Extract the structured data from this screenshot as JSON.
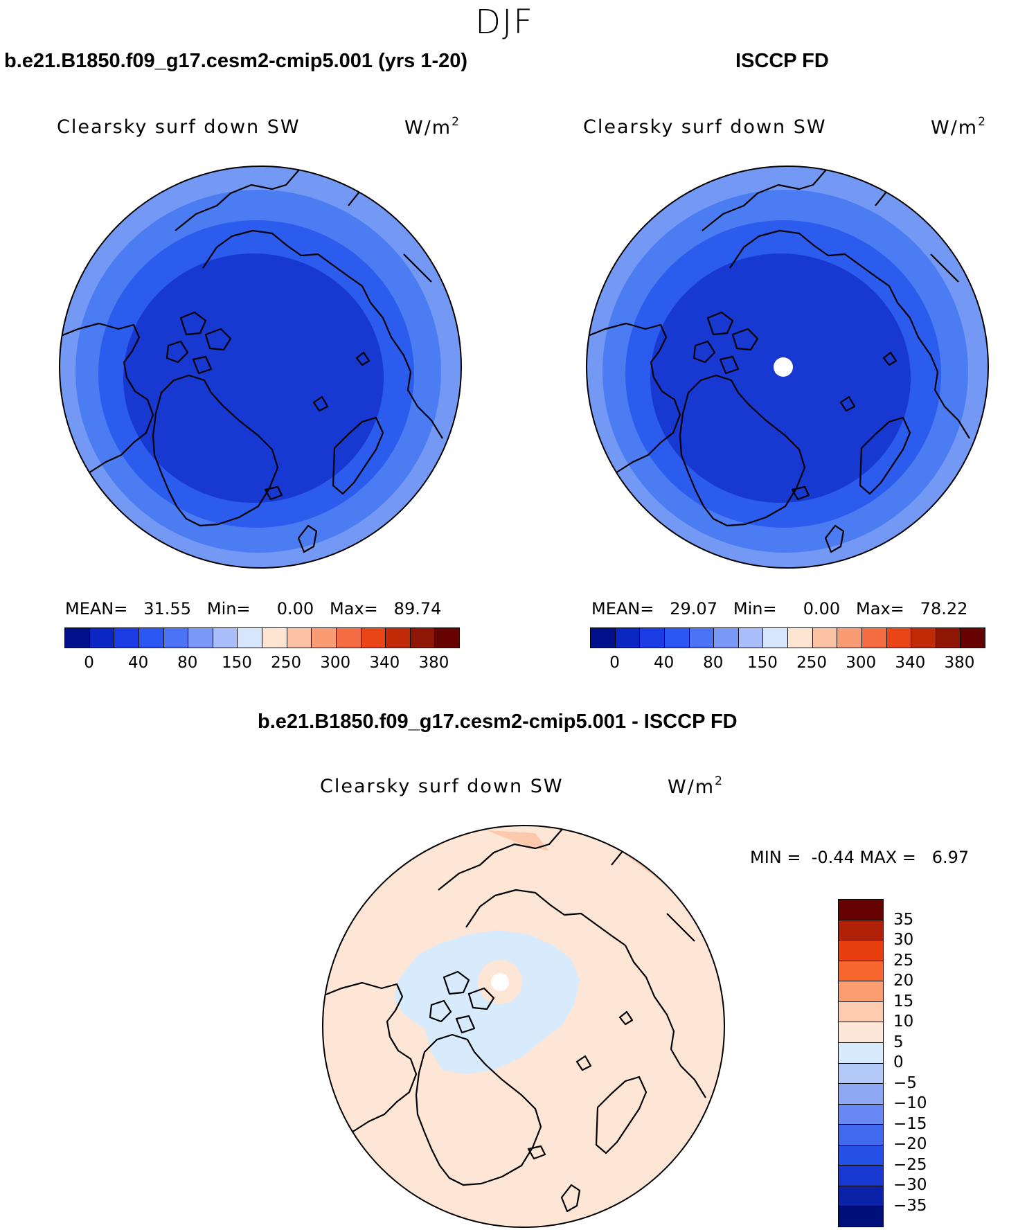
{
  "season": "DJF",
  "colors": {
    "ring_outer": "#7499f4",
    "ring2": "#4b7cf2",
    "ring3": "#2b5ced",
    "ring_inner": "#1838d2",
    "diff_background": "#fde6d6",
    "diff_negative": "#d7ebfd",
    "diff_positive_patch": "#fcc9ad",
    "coast": "#000000"
  },
  "panels": [
    {
      "case_title": "b.e21.B1850.f09_g17.cesm2-cmip5.001 (yrs 1-20)",
      "variable": "Clearsky surf down SW",
      "units_base": "W/m",
      "units_exp": "2",
      "mean_label": "MEAN=",
      "mean": "31.55",
      "min_label": "Min=",
      "min": "0.00",
      "max_label": "Max=",
      "max": "89.74",
      "missing_pole": false
    },
    {
      "case_title": "ISCCP FD",
      "variable": "Clearsky surf down SW",
      "units_base": "W/m",
      "units_exp": "2",
      "mean_label": "MEAN=",
      "mean": "29.07",
      "min_label": "Min=",
      "min": "0.00",
      "max_label": "Max=",
      "max": "78.22",
      "missing_pole": true
    }
  ],
  "diff_panel": {
    "case_title": "b.e21.B1850.f09_g17.cesm2-cmip5.001 - ISCCP FD",
    "variable": "Clearsky surf down SW",
    "units_base": "W/m",
    "units_exp": "2",
    "min_label": "MIN =",
    "min": "-0.44",
    "max_label": "MAX =",
    "max": "6.97"
  },
  "colorbar_abs": {
    "colors": [
      "#000f8a",
      "#0a27c4",
      "#1c3de6",
      "#2b58f2",
      "#4a74f5",
      "#7a99f7",
      "#a8bdf9",
      "#d6e6fb",
      "#fde5d2",
      "#fbc3a3",
      "#f99c73",
      "#f56e43",
      "#e94517",
      "#c02a07",
      "#8f1505",
      "#650303"
    ],
    "tick_labels": [
      "0",
      "40",
      "80",
      "150",
      "250",
      "300",
      "340",
      "380"
    ]
  },
  "colorbar_diff": {
    "colors": [
      "#650303",
      "#b02006",
      "#e73e10",
      "#f8672e",
      "#fa9d6f",
      "#fccbb0",
      "#fde7d8",
      "#d7ebfd",
      "#b3c9f8",
      "#8ea8f4",
      "#6889f1",
      "#4169ee",
      "#2550e7",
      "#1838d2",
      "#0a22a8",
      "#000f7a"
    ],
    "tick_labels": [
      "35",
      "30",
      "25",
      "20",
      "15",
      "10",
      "5",
      "0",
      "−5",
      "−10",
      "−15",
      "−20",
      "−25",
      "−30",
      "−35"
    ]
  },
  "chart_data": [
    {
      "type": "heatmap",
      "title": "b.e21.B1850.f09_g17.cesm2-cmip5.001 (yrs 1-20)",
      "subtitle": "Clearsky surf down SW",
      "units": "W/m2",
      "projection": "north polar stereographic",
      "stats": {
        "mean": 31.55,
        "min": 0.0,
        "max": 89.74
      },
      "contour_levels": [
        0,
        20,
        40,
        60,
        80,
        100,
        150,
        200,
        250,
        275,
        300,
        320,
        340,
        360,
        380
      ],
      "rings_center_to_edge": [
        20,
        40,
        60,
        80
      ]
    },
    {
      "type": "heatmap",
      "title": "ISCCP FD",
      "subtitle": "Clearsky surf down SW",
      "units": "W/m2",
      "projection": "north polar stereographic",
      "stats": {
        "mean": 29.07,
        "min": 0.0,
        "max": 78.22
      },
      "contour_levels": [
        0,
        20,
        40,
        60,
        80,
        100,
        150,
        200,
        250,
        275,
        300,
        320,
        340,
        360,
        380
      ],
      "rings_center_to_edge": [
        20,
        40,
        60,
        80
      ]
    },
    {
      "type": "heatmap",
      "title": "b.e21.B1850.f09_g17.cesm2-cmip5.001 - ISCCP FD",
      "subtitle": "Clearsky surf down SW",
      "units": "W/m2",
      "projection": "north polar stereographic",
      "stats": {
        "min": -0.44,
        "max": 6.97
      },
      "contour_levels": [
        -35,
        -30,
        -25,
        -20,
        -15,
        -10,
        -5,
        0,
        5,
        10,
        15,
        20,
        25,
        30,
        35
      ],
      "dominant_range": [
        0,
        5
      ],
      "central_arctic_range": [
        -5,
        0
      ]
    }
  ]
}
